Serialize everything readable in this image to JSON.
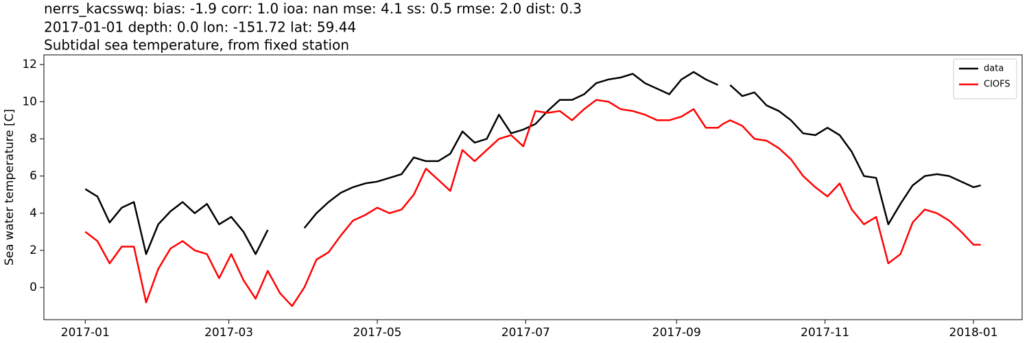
{
  "chart_data": {
    "type": "line",
    "title": [
      "nerrs_kacsswq: bias: -1.9  corr: 1.0  ioa: nan  mse: 4.1  ss: 0.5  rmse: 2.0  dist: 0.3",
      "2017-01-01 depth: 0.0 lon: -151.72 lat: 59.44",
      "Subtidal sea temperature, from fixed station"
    ],
    "ylabel": "Sea water temperature [C]",
    "x": [
      0,
      5,
      10,
      15,
      20,
      25,
      30,
      35,
      40,
      45,
      50,
      55,
      60,
      65,
      70,
      75,
      80,
      85,
      90,
      95,
      100,
      105,
      110,
      115,
      120,
      125,
      130,
      135,
      140,
      145,
      150,
      155,
      160,
      165,
      170,
      175,
      180,
      185,
      190,
      195,
      200,
      205,
      210,
      215,
      220,
      225,
      230,
      235,
      240,
      245,
      250,
      255,
      260,
      262,
      265,
      270,
      275,
      280,
      285,
      290,
      295,
      300,
      305,
      310,
      315,
      320,
      325,
      330,
      335,
      340,
      345,
      350,
      355,
      360,
      365,
      368
    ],
    "series": [
      {
        "name": "data",
        "color": "#000000",
        "values": [
          5.3,
          4.9,
          3.5,
          4.3,
          4.6,
          1.8,
          3.4,
          4.1,
          4.6,
          4.0,
          4.5,
          3.4,
          3.8,
          3.0,
          1.8,
          3.1,
          null,
          null,
          3.2,
          4.0,
          4.6,
          5.1,
          5.4,
          5.6,
          5.7,
          5.9,
          6.1,
          7.0,
          6.8,
          6.8,
          7.2,
          8.4,
          7.8,
          8.0,
          9.3,
          8.3,
          8.5,
          8.8,
          9.5,
          10.1,
          10.1,
          10.4,
          11.0,
          11.2,
          11.3,
          11.5,
          11.0,
          10.7,
          10.4,
          11.2,
          11.6,
          11.2,
          10.9,
          null,
          10.9,
          10.3,
          10.5,
          9.8,
          9.5,
          9.0,
          8.3,
          8.2,
          8.6,
          8.2,
          7.3,
          6.0,
          5.9,
          3.4,
          4.5,
          5.5,
          6.0,
          6.1,
          6.0,
          5.7,
          5.4,
          5.5
        ]
      },
      {
        "name": "CIOFS",
        "color": "#ff0000",
        "values": [
          3.0,
          2.5,
          1.3,
          2.2,
          2.2,
          -0.8,
          1.0,
          2.1,
          2.5,
          2.0,
          1.8,
          0.5,
          1.8,
          0.4,
          -0.6,
          0.9,
          -0.3,
          -1.0,
          0.0,
          1.5,
          1.9,
          2.8,
          3.6,
          3.9,
          4.3,
          4.0,
          4.2,
          5.0,
          6.4,
          5.8,
          5.2,
          7.4,
          6.8,
          7.4,
          8.0,
          8.2,
          7.6,
          9.5,
          9.4,
          9.5,
          9.0,
          9.6,
          10.1,
          10.0,
          9.6,
          9.5,
          9.3,
          9.0,
          9.0,
          9.2,
          9.6,
          8.6,
          8.6,
          8.8,
          9.0,
          8.7,
          8.0,
          7.9,
          7.5,
          6.9,
          6.0,
          5.4,
          4.9,
          5.6,
          4.2,
          3.4,
          3.8,
          1.3,
          1.8,
          3.5,
          4.2,
          4.0,
          3.6,
          3.0,
          2.3,
          2.3
        ]
      }
    ],
    "xlim": [
      -17,
      385
    ],
    "xticks": [
      {
        "value": 0,
        "label": "2017-01"
      },
      {
        "value": 59,
        "label": "2017-03"
      },
      {
        "value": 120,
        "label": "2017-05"
      },
      {
        "value": 181,
        "label": "2017-07"
      },
      {
        "value": 243,
        "label": "2017-09"
      },
      {
        "value": 304,
        "label": "2017-11"
      },
      {
        "value": 365,
        "label": "2018-01"
      }
    ],
    "ylim": [
      -1.73,
      12.52
    ],
    "yticks": [
      0,
      2,
      4,
      6,
      8,
      10,
      12
    ],
    "legend": "upper right",
    "grid": false
  }
}
